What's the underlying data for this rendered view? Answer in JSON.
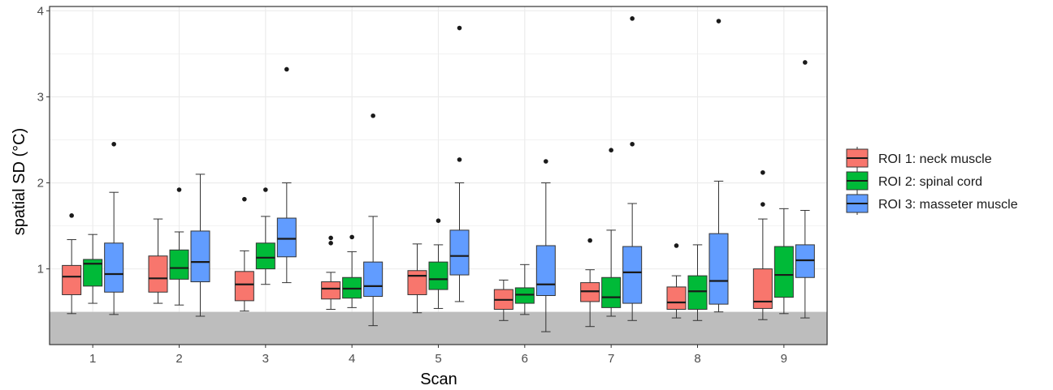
{
  "chart_data": {
    "type": "boxplot",
    "xlabel": "Scan",
    "ylabel": "spatial SD (°C)",
    "categories": [
      "1",
      "2",
      "3",
      "4",
      "5",
      "6",
      "7",
      "8",
      "9"
    ],
    "ylim": [
      0.12,
      4.05
    ],
    "yticks": [
      1,
      2,
      3,
      4
    ],
    "grid": true,
    "shaded_band": [
      0.12,
      0.5
    ],
    "shaded_band_color": "#bdbdbd",
    "legend_position": "right",
    "series": [
      {
        "name": "ROI 1: neck muscle",
        "color": "#F8766D",
        "boxes": [
          {
            "low": 0.48,
            "q1": 0.7,
            "median": 0.91,
            "q3": 1.04,
            "high": 1.34,
            "outliers": [
              1.62
            ]
          },
          {
            "low": 0.6,
            "q1": 0.73,
            "median": 0.89,
            "q3": 1.15,
            "high": 1.58,
            "outliers": []
          },
          {
            "low": 0.51,
            "q1": 0.63,
            "median": 0.82,
            "q3": 0.97,
            "high": 1.21,
            "outliers": [
              1.81
            ]
          },
          {
            "low": 0.53,
            "q1": 0.65,
            "median": 0.77,
            "q3": 0.85,
            "high": 0.96,
            "outliers": [
              1.3,
              1.36
            ]
          },
          {
            "low": 0.49,
            "q1": 0.7,
            "median": 0.92,
            "q3": 0.98,
            "high": 1.29,
            "outliers": []
          },
          {
            "low": 0.4,
            "q1": 0.53,
            "median": 0.64,
            "q3": 0.76,
            "high": 0.87,
            "outliers": []
          },
          {
            "low": 0.33,
            "q1": 0.62,
            "median": 0.74,
            "q3": 0.84,
            "high": 0.99,
            "outliers": [
              1.33
            ]
          },
          {
            "low": 0.43,
            "q1": 0.53,
            "median": 0.61,
            "q3": 0.79,
            "high": 0.92,
            "outliers": [
              1.27
            ]
          },
          {
            "low": 0.41,
            "q1": 0.54,
            "median": 0.62,
            "q3": 1.0,
            "high": 1.58,
            "outliers": [
              1.75,
              2.12
            ]
          }
        ]
      },
      {
        "name": "ROI 2: spinal cord",
        "color": "#00BA38",
        "boxes": [
          {
            "low": 0.6,
            "q1": 0.8,
            "median": 1.06,
            "q3": 1.11,
            "high": 1.4,
            "outliers": []
          },
          {
            "low": 0.58,
            "q1": 0.88,
            "median": 1.01,
            "q3": 1.22,
            "high": 1.43,
            "outliers": [
              1.92
            ]
          },
          {
            "low": 0.82,
            "q1": 1.0,
            "median": 1.13,
            "q3": 1.3,
            "high": 1.61,
            "outliers": [
              1.92
            ]
          },
          {
            "low": 0.55,
            "q1": 0.66,
            "median": 0.77,
            "q3": 0.9,
            "high": 1.2,
            "outliers": [
              1.37
            ]
          },
          {
            "low": 0.54,
            "q1": 0.76,
            "median": 0.88,
            "q3": 1.08,
            "high": 1.28,
            "outliers": [
              1.56
            ]
          },
          {
            "low": 0.47,
            "q1": 0.6,
            "median": 0.7,
            "q3": 0.78,
            "high": 1.05,
            "outliers": []
          },
          {
            "low": 0.45,
            "q1": 0.55,
            "median": 0.67,
            "q3": 0.9,
            "high": 1.45,
            "outliers": [
              2.38
            ]
          },
          {
            "low": 0.4,
            "q1": 0.53,
            "median": 0.74,
            "q3": 0.92,
            "high": 1.28,
            "outliers": []
          },
          {
            "low": 0.48,
            "q1": 0.67,
            "median": 0.93,
            "q3": 1.26,
            "high": 1.7,
            "outliers": []
          }
        ]
      },
      {
        "name": "ROI 3: masseter muscle",
        "color": "#619CFF",
        "boxes": [
          {
            "low": 0.47,
            "q1": 0.73,
            "median": 0.94,
            "q3": 1.3,
            "high": 1.89,
            "outliers": [
              2.45
            ]
          },
          {
            "low": 0.45,
            "q1": 0.85,
            "median": 1.08,
            "q3": 1.44,
            "high": 2.1,
            "outliers": []
          },
          {
            "low": 0.84,
            "q1": 1.14,
            "median": 1.35,
            "q3": 1.59,
            "high": 2.0,
            "outliers": [
              3.32
            ]
          },
          {
            "low": 0.34,
            "q1": 0.68,
            "median": 0.8,
            "q3": 1.08,
            "high": 1.61,
            "outliers": [
              2.78
            ]
          },
          {
            "low": 0.62,
            "q1": 0.93,
            "median": 1.15,
            "q3": 1.45,
            "high": 2.0,
            "outliers": [
              2.27,
              3.8
            ]
          },
          {
            "low": 0.27,
            "q1": 0.69,
            "median": 0.82,
            "q3": 1.27,
            "high": 2.0,
            "outliers": [
              2.25
            ]
          },
          {
            "low": 0.4,
            "q1": 0.6,
            "median": 0.96,
            "q3": 1.26,
            "high": 1.76,
            "outliers": [
              2.45,
              3.91
            ]
          },
          {
            "low": 0.5,
            "q1": 0.59,
            "median": 0.86,
            "q3": 1.41,
            "high": 2.02,
            "outliers": [
              3.88
            ]
          },
          {
            "low": 0.43,
            "q1": 0.9,
            "median": 1.1,
            "q3": 1.28,
            "high": 1.68,
            "outliers": [
              3.4
            ]
          }
        ]
      }
    ]
  }
}
